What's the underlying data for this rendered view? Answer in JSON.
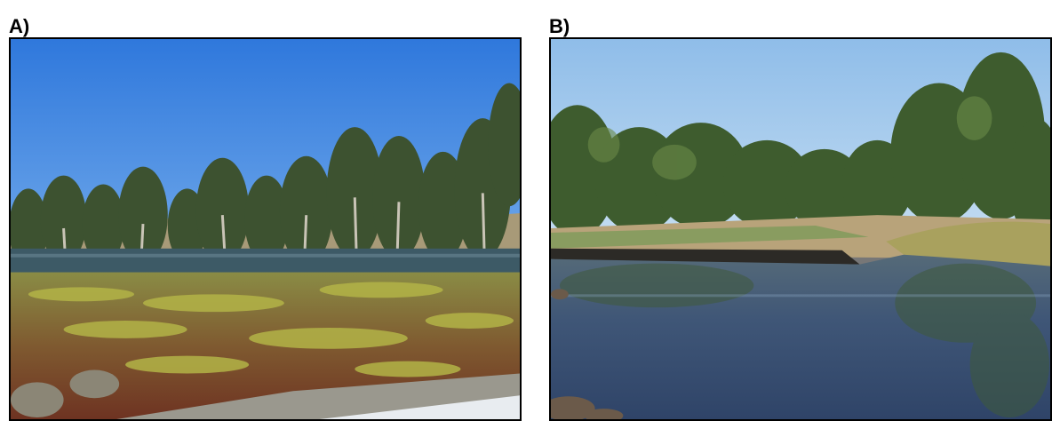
{
  "panels": [
    {
      "label": "A)",
      "scene": "dry-wetland-with-aquatic-vegetation",
      "colors": {
        "sky": "#3f86e0",
        "water": "#3d5a66",
        "vegetation": "#8a8a3a",
        "mud": "#7a3a24"
      }
    },
    {
      "label": "B)",
      "scene": "river-pool-with-eucalyptus-trees",
      "colors": {
        "sky": "#a9cdef",
        "water": "#3b4f6e",
        "trees": "#3e5c2e",
        "bank": "#b8a37a"
      }
    }
  ]
}
